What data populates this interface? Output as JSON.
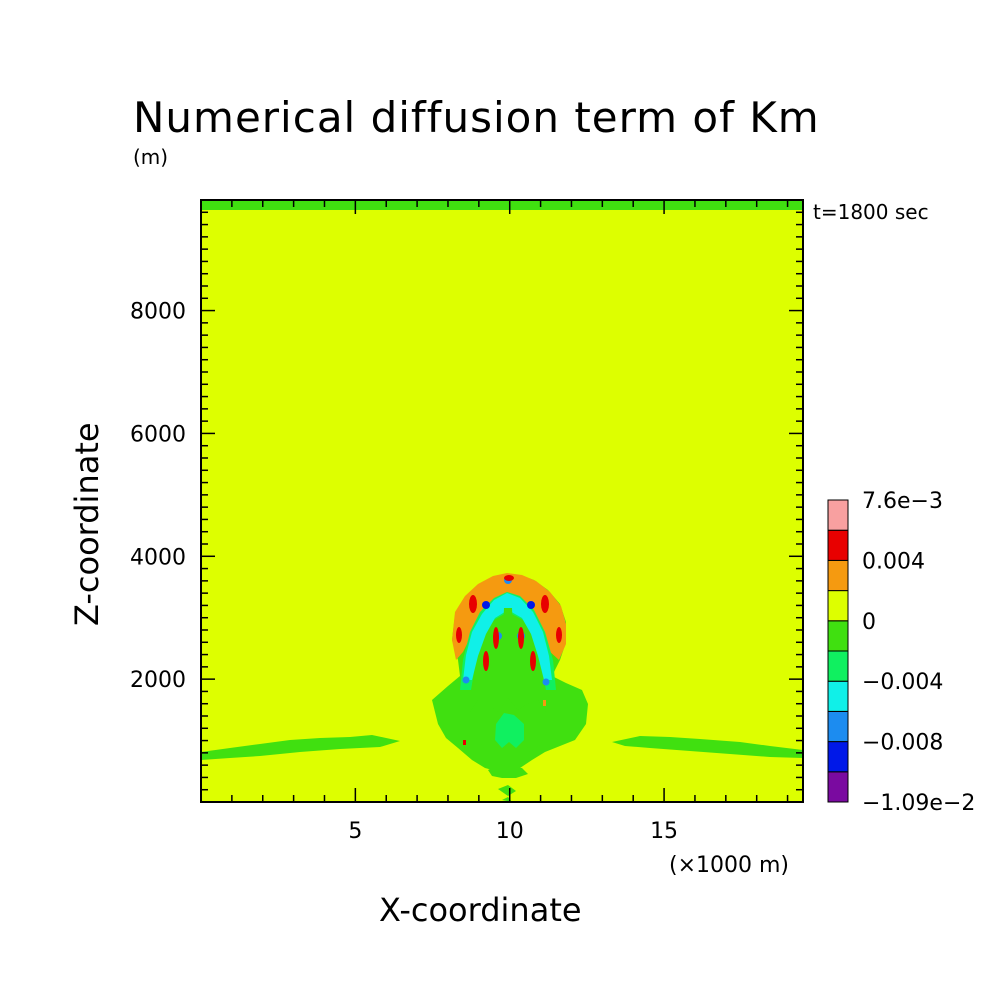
{
  "chart_data": {
    "type": "contour",
    "title": "Numerical diffusion term of Km",
    "units": "(m)",
    "time_label": "t=1800 sec",
    "xlabel": "X-coordinate",
    "ylabel": "Z-coordinate",
    "x_unit_label": "(×1000 m)",
    "xlim": [
      0,
      19.5
    ],
    "ylim": [
      0,
      9800
    ],
    "x_ticks": [
      5,
      10,
      15
    ],
    "x_tick_labels": [
      "5",
      "10",
      "15"
    ],
    "y_ticks": [
      2000,
      4000,
      6000,
      8000
    ],
    "y_tick_labels": [
      "2000",
      "4000",
      "6000",
      "8000"
    ],
    "colorbar": {
      "colors": [
        "#7a0aa0",
        "#0018e8",
        "#1c8cf0",
        "#10f0e8",
        "#10f060",
        "#40e010",
        "#ddff00",
        "#f59a10",
        "#e80000",
        "#f8a0a0"
      ],
      "labels": [
        "−1.09e−2",
        "−0.008",
        "−0.004",
        "0",
        "0.004",
        "7.6e−3"
      ],
      "label_levels": [
        0,
        2,
        4,
        6,
        8,
        10
      ]
    },
    "background_value_color": "#ddff00"
  }
}
